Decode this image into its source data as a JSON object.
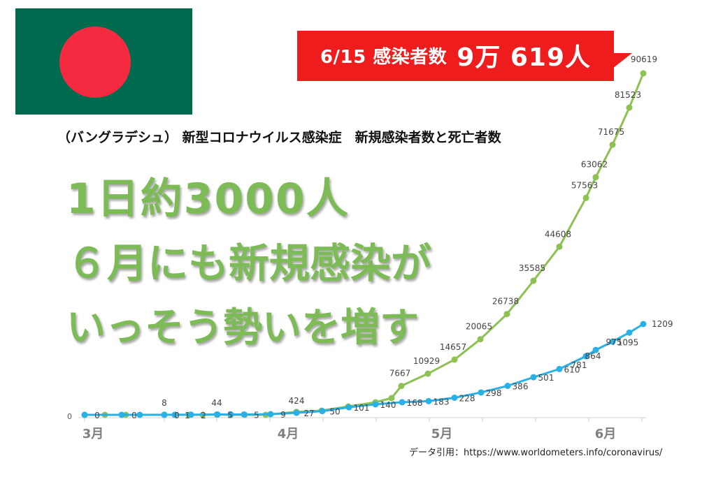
{
  "callout": {
    "prefix": "6/15 感染者数",
    "big": "9万 619人",
    "color": "#ee1c1c"
  },
  "subtitle": "（バングラデシュ） 新型コロナウイルス感染症　新規感染者数と死亡者数",
  "headline": {
    "line1": "1日約3000人",
    "line2": "６月にも新規感染が",
    "line3": "いっそう勢いを増す",
    "color": "#7dbb56"
  },
  "source": "データ引用：https://www.worldometers.info/coronavirus/",
  "flag": {
    "field": "#006a4e",
    "disc": "#f42a41"
  },
  "chart_data": {
    "type": "line",
    "x_ticks": [
      "3月",
      "4月",
      "5月",
      "6月"
    ],
    "zero_label": "0",
    "series": [
      {
        "color": "#8dc153",
        "values": [
          0,
          0,
          0,
          8,
          0,
          0,
          0,
          44,
          0,
          0,
          0,
          424,
          0,
          0,
          0,
          0,
          7667,
          10929,
          14657,
          20065,
          26738,
          35585,
          44608,
          57563,
          63062,
          71675,
          81523,
          90619
        ],
        "labels": [
          "",
          "",
          "",
          "8",
          "",
          "",
          "",
          "44",
          "",
          "",
          "",
          "424",
          "",
          "",
          "",
          "",
          "7667",
          "10929",
          "14657",
          "20065",
          "26738",
          "35585",
          "44608",
          "57563",
          "63062",
          "71675",
          "81523",
          "90619"
        ]
      },
      {
        "color": "#29b0e6",
        "values": [
          0,
          0,
          0,
          0,
          1,
          2,
          5,
          5,
          5,
          9,
          27,
          50,
          101,
          140,
          168,
          183,
          228,
          298,
          386,
          501,
          610,
          781,
          864,
          975,
          1095,
          1209
        ],
        "labels": [
          "0",
          "0",
          "",
          "0",
          "1",
          "2",
          "5",
          "",
          "5",
          "9",
          "27",
          "50",
          "101",
          "140",
          "168",
          "183",
          "228",
          "298",
          "386",
          "501",
          "610",
          "781",
          "864",
          "975",
          "1095",
          "1209"
        ]
      }
    ]
  }
}
